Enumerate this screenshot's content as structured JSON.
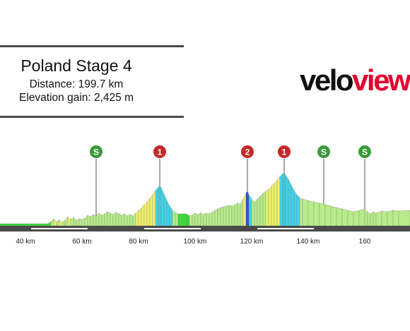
{
  "header": {
    "title": "Poland Stage 4",
    "distance": "Distance: 199.7 km",
    "elevation_gain": "Elevation gain: 2,425 m"
  },
  "logo": {
    "part1": "velo",
    "part2": "view"
  },
  "colors": {
    "flat": "#3dd63d",
    "light": "#b8ec8a",
    "medium": "#eef06a",
    "steep": "#3fd5e8",
    "very_steep": "#1f4fd8",
    "sprint_marker": "#3a9a3a",
    "kom_marker": "#c62828",
    "road": "#4a4a4a"
  },
  "chart_data": {
    "type": "area",
    "title": "",
    "xlabel": "",
    "ylabel": "",
    "x_ticks": [
      "40 km",
      "60 km",
      "80 km",
      "100 km",
      "120 km",
      "140 km",
      "160"
    ],
    "x_tick_values": [
      40,
      60,
      80,
      100,
      120,
      140,
      160
    ],
    "xlim": [
      31,
      176
    ],
    "profile": [
      [
        31,
        3,
        "flat"
      ],
      [
        48,
        3,
        "flat"
      ],
      [
        49,
        6,
        "light"
      ],
      [
        50,
        10,
        "medium"
      ],
      [
        51,
        6,
        "light"
      ],
      [
        52,
        9,
        "medium"
      ],
      [
        53,
        5,
        "light"
      ],
      [
        54,
        8,
        "light"
      ],
      [
        55,
        13,
        "medium"
      ],
      [
        56,
        9,
        "light"
      ],
      [
        57,
        12,
        "light"
      ],
      [
        58,
        8,
        "light"
      ],
      [
        59,
        10,
        "light"
      ],
      [
        60,
        9,
        "light"
      ],
      [
        61,
        11,
        "light"
      ],
      [
        62,
        15,
        "light"
      ],
      [
        63,
        13,
        "light"
      ],
      [
        64,
        16,
        "light"
      ],
      [
        65,
        14,
        "light"
      ],
      [
        66,
        18,
        "light"
      ],
      [
        67,
        15,
        "light"
      ],
      [
        68,
        17,
        "light"
      ],
      [
        69,
        20,
        "light"
      ],
      [
        70,
        18,
        "light"
      ],
      [
        71,
        16,
        "light"
      ],
      [
        72,
        19,
        "light"
      ],
      [
        73,
        17,
        "light"
      ],
      [
        74,
        15,
        "light"
      ],
      [
        75,
        17,
        "light"
      ],
      [
        76,
        14,
        "light"
      ],
      [
        77,
        16,
        "light"
      ],
      [
        78,
        14,
        "light"
      ],
      [
        79,
        18,
        "medium"
      ],
      [
        80,
        22,
        "medium"
      ],
      [
        81,
        25,
        "medium"
      ],
      [
        82,
        30,
        "medium"
      ],
      [
        83,
        34,
        "medium"
      ],
      [
        84,
        39,
        "medium"
      ],
      [
        85,
        44,
        "medium"
      ],
      [
        86,
        50,
        "steep"
      ],
      [
        87,
        55,
        "steep"
      ],
      [
        87.5,
        57,
        "steep"
      ],
      [
        88,
        54,
        "steep"
      ],
      [
        89,
        45,
        "steep"
      ],
      [
        90,
        36,
        "steep"
      ],
      [
        91,
        28,
        "steep"
      ],
      [
        92,
        22,
        "light"
      ],
      [
        93,
        19,
        "light"
      ],
      [
        94,
        17,
        "flat"
      ],
      [
        97,
        17,
        "flat"
      ],
      [
        98,
        14,
        "light"
      ],
      [
        99,
        15,
        "light"
      ],
      [
        100,
        18,
        "light"
      ],
      [
        101,
        16,
        "light"
      ],
      [
        102,
        19,
        "light"
      ],
      [
        103,
        16,
        "light"
      ],
      [
        104,
        18,
        "light"
      ],
      [
        105,
        17,
        "light"
      ],
      [
        106,
        19,
        "light"
      ],
      [
        107,
        22,
        "light"
      ],
      [
        108,
        24,
        "light"
      ],
      [
        109,
        26,
        "light"
      ],
      [
        110,
        27,
        "light"
      ],
      [
        111,
        28,
        "light"
      ],
      [
        112,
        29,
        "light"
      ],
      [
        113,
        28,
        "light"
      ],
      [
        114,
        30,
        "light"
      ],
      [
        115,
        32,
        "light"
      ],
      [
        116,
        31,
        "light"
      ],
      [
        117,
        38,
        "medium"
      ],
      [
        118,
        46,
        "very_steep"
      ],
      [
        118.5,
        50,
        "very_steep"
      ],
      [
        119,
        44,
        "steep"
      ],
      [
        120,
        38,
        "light"
      ],
      [
        121,
        34,
        "light"
      ],
      [
        122,
        38,
        "light"
      ],
      [
        123,
        42,
        "light"
      ],
      [
        124,
        46,
        "light"
      ],
      [
        125,
        49,
        "medium"
      ],
      [
        126,
        52,
        "medium"
      ],
      [
        127,
        56,
        "medium"
      ],
      [
        128,
        60,
        "medium"
      ],
      [
        129,
        65,
        "medium"
      ],
      [
        130,
        70,
        "steep"
      ],
      [
        131,
        74,
        "steep"
      ],
      [
        131.5,
        76,
        "steep"
      ],
      [
        132,
        72,
        "steep"
      ],
      [
        133,
        66,
        "steep"
      ],
      [
        134,
        58,
        "steep"
      ],
      [
        135,
        50,
        "steep"
      ],
      [
        136,
        44,
        "steep"
      ],
      [
        137,
        40,
        "light"
      ],
      [
        138,
        38,
        "light"
      ],
      [
        140,
        36,
        "light"
      ],
      [
        142,
        34,
        "light"
      ],
      [
        144,
        32,
        "light"
      ],
      [
        146,
        30,
        "light"
      ],
      [
        148,
        28,
        "light"
      ],
      [
        150,
        26,
        "light"
      ],
      [
        152,
        24,
        "light"
      ],
      [
        154,
        22,
        "light"
      ],
      [
        156,
        20,
        "light"
      ],
      [
        158,
        22,
        "light"
      ],
      [
        160,
        24,
        "light"
      ],
      [
        161,
        20,
        "light"
      ],
      [
        162,
        17,
        "light"
      ],
      [
        163,
        20,
        "light"
      ],
      [
        164,
        18,
        "light"
      ],
      [
        166,
        21,
        "light"
      ],
      [
        168,
        20,
        "light"
      ],
      [
        170,
        22,
        "light"
      ],
      [
        172,
        21,
        "light"
      ],
      [
        176,
        22,
        "light"
      ]
    ],
    "markers": [
      {
        "label": "S",
        "type": "sprint",
        "x": 65
      },
      {
        "label": "1",
        "type": "kom",
        "x": 87.5
      },
      {
        "label": "2",
        "type": "kom",
        "x": 118.5
      },
      {
        "label": "1",
        "type": "kom",
        "x": 131.5
      },
      {
        "label": "S",
        "type": "sprint",
        "x": 145.5
      },
      {
        "label": "S",
        "type": "sprint",
        "x": 160
      }
    ]
  }
}
